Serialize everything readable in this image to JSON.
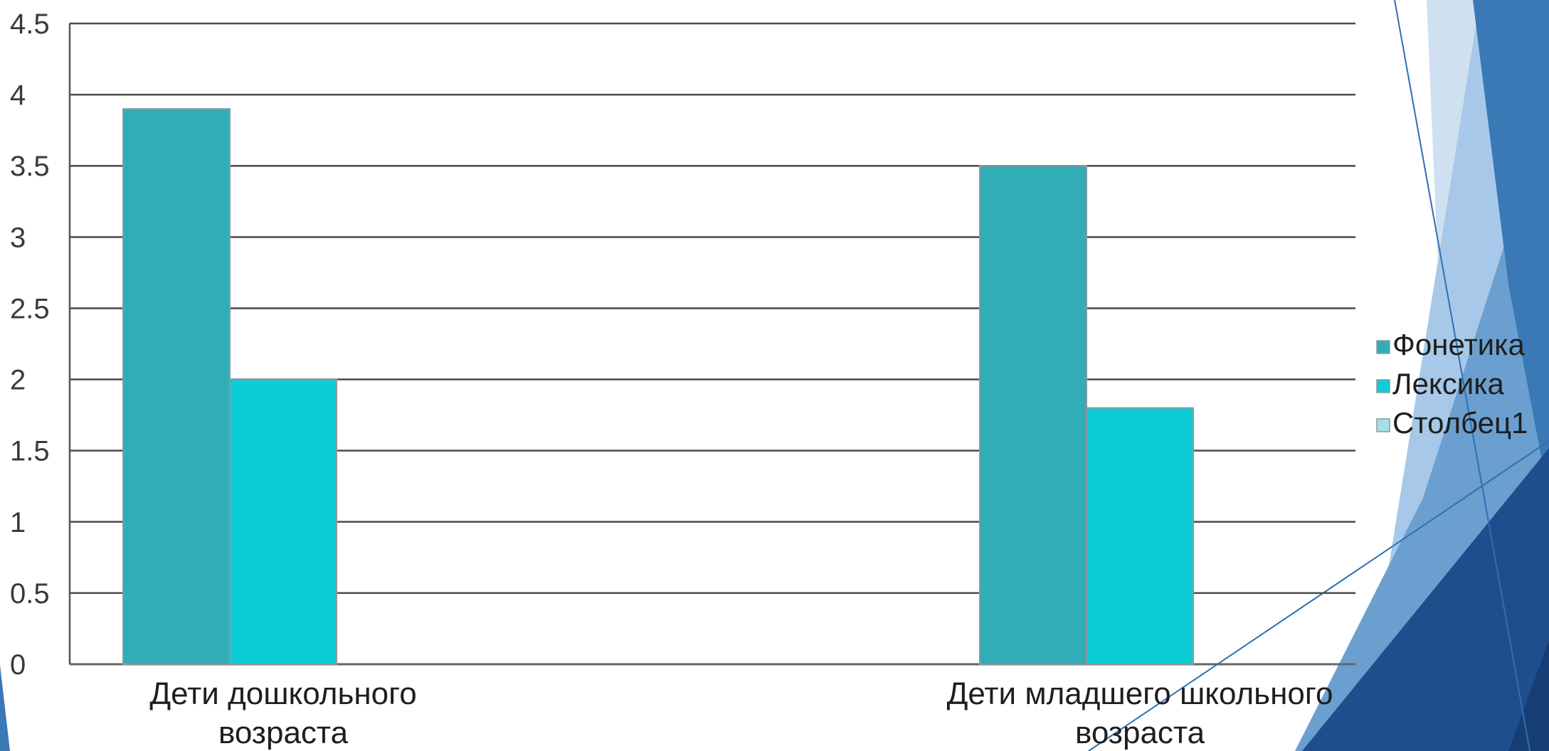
{
  "chart_data": {
    "type": "bar",
    "categories": [
      [
        "Дети дошкольного",
        "возраста"
      ],
      [
        "Дети младшего школьного",
        "возраста"
      ]
    ],
    "series": [
      {
        "name": "Фонетика",
        "values": [
          3.9,
          3.5
        ],
        "color": "#31adb5"
      },
      {
        "name": "Лексика",
        "values": [
          2.0,
          1.8
        ],
        "color": "#0bcdd6"
      },
      {
        "name": "Столбец1",
        "values": [
          0,
          0
        ],
        "color": "#a6dfe3"
      }
    ],
    "ylim": [
      0,
      4.5
    ],
    "yticks": [
      "0",
      "0.5",
      "1",
      "1.5",
      "2",
      "2.5",
      "3",
      "3.5",
      "4",
      "4.5"
    ],
    "grid": true,
    "legend": "right"
  },
  "background": {
    "accent_colors": [
      "#1f4e8c",
      "#3a78b6",
      "#6b9fd0",
      "#a7c8e8",
      "#cfe0f1"
    ]
  }
}
